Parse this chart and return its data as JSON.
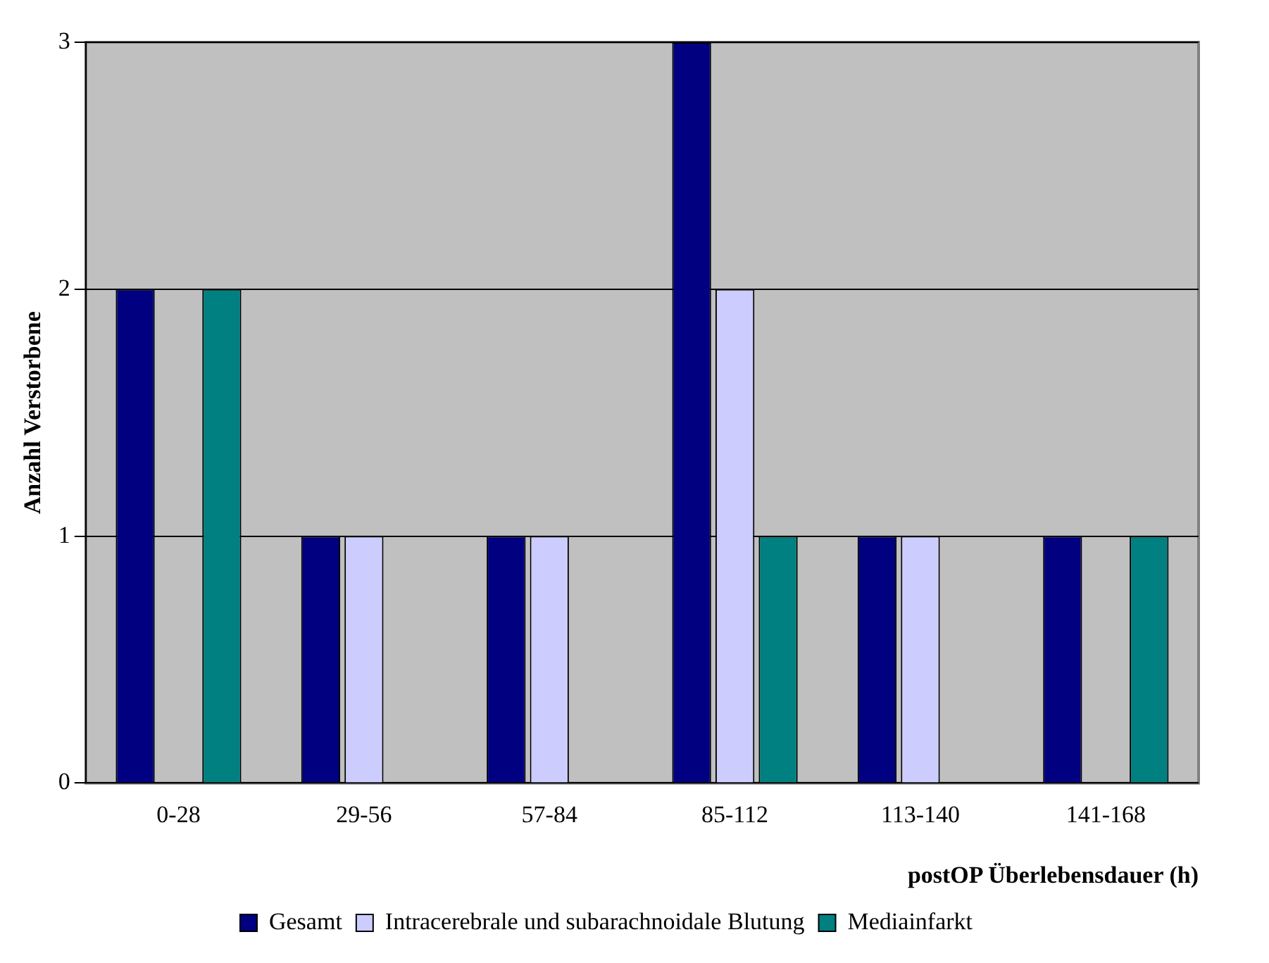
{
  "chart_data": {
    "type": "bar",
    "xlabel": "postOP Überlebensdauer (h)",
    "ylabel": "Anzahl Verstorbene",
    "categories": [
      "0-28",
      "29-56",
      "57-84",
      "85-112",
      "113-140",
      "141-168"
    ],
    "series": [
      {
        "name": "Gesamt",
        "color": "#000080",
        "values": [
          2,
          1,
          1,
          3,
          1,
          1
        ]
      },
      {
        "name": "Intracerebrale und subarachnoidale Blutung",
        "color": "#ccccff",
        "values": [
          0,
          1,
          1,
          2,
          1,
          0
        ]
      },
      {
        "name": "Mediainfarkt",
        "color": "#008080",
        "values": [
          2,
          0,
          0,
          1,
          0,
          1
        ]
      }
    ],
    "ylim": [
      0,
      3
    ],
    "yticks": [
      0,
      1,
      2,
      3
    ],
    "grid": "y",
    "legend": "bottom"
  }
}
